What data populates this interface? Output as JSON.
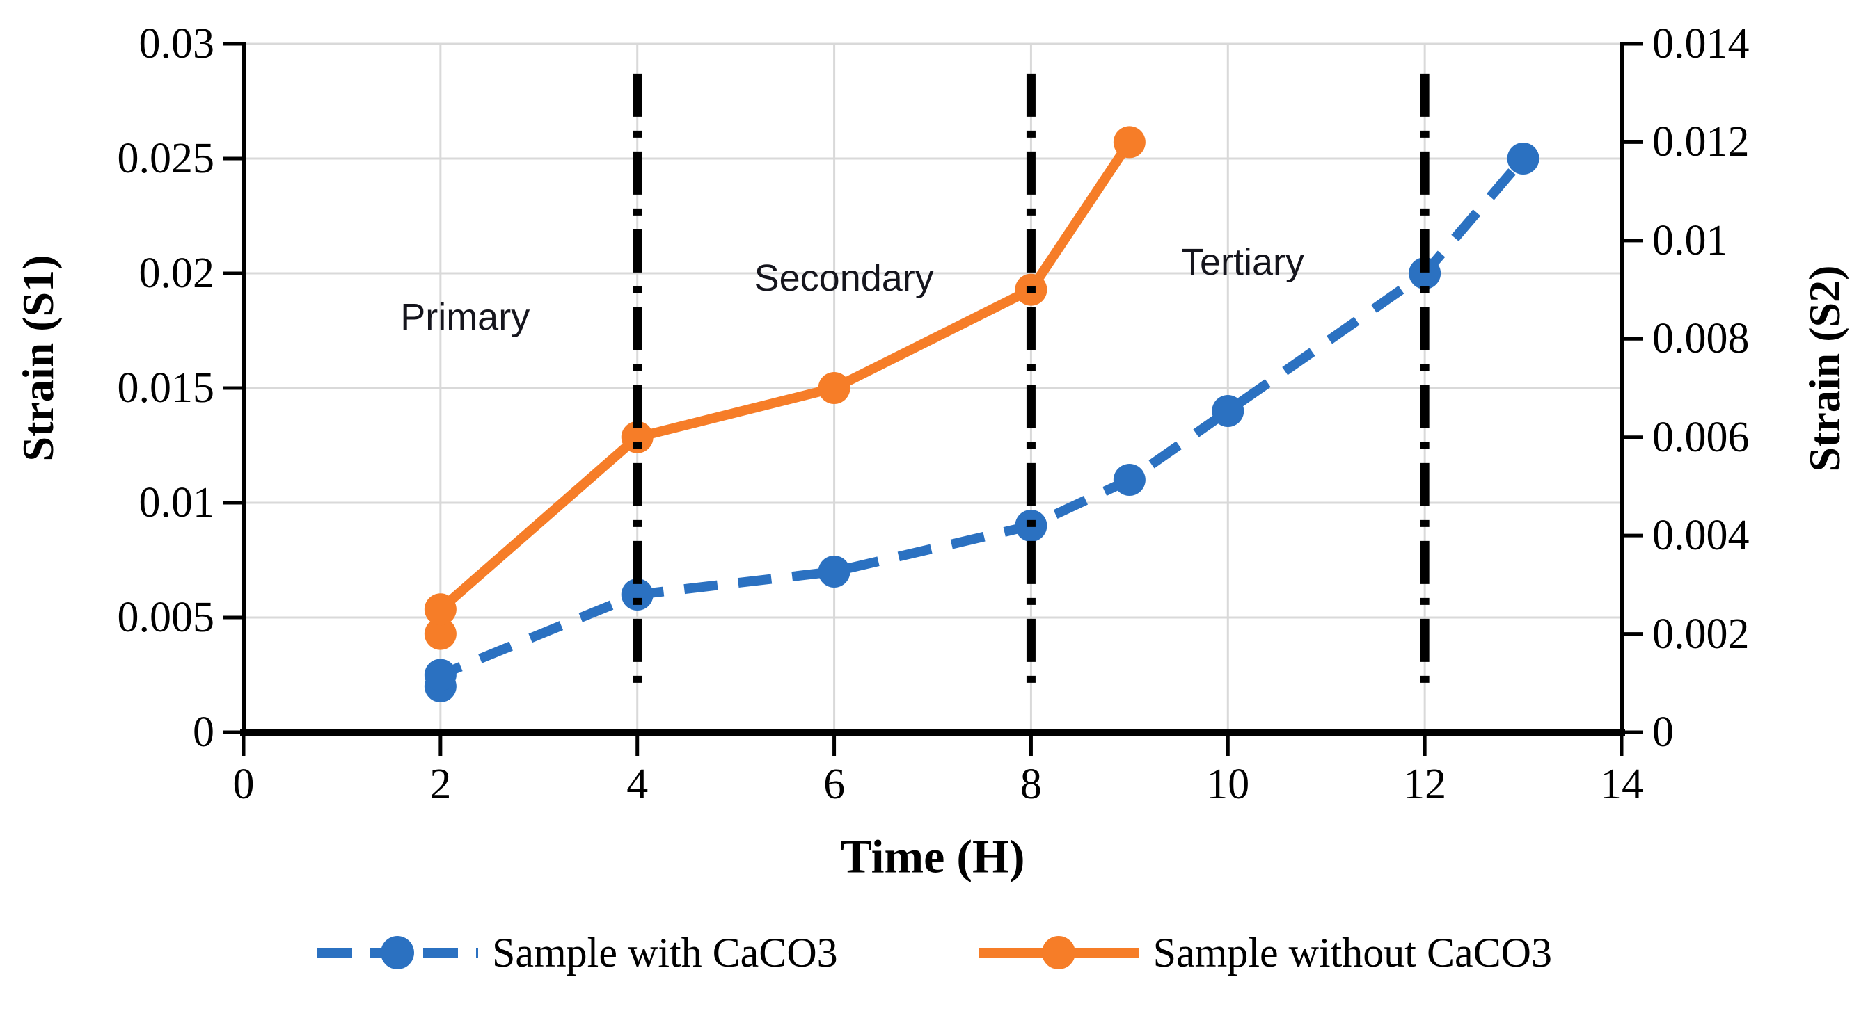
{
  "figure": {
    "background": "#ffffff",
    "x_axis": {
      "title": "Time (H)",
      "min": 0,
      "max": 14,
      "ticks": [
        {
          "label": "0",
          "value": 0
        },
        {
          "label": "2",
          "value": 2
        },
        {
          "label": "4",
          "value": 4
        },
        {
          "label": "6",
          "value": 6
        },
        {
          "label": "8",
          "value": 8
        },
        {
          "label": "10",
          "value": 10
        },
        {
          "label": "12",
          "value": 12
        },
        {
          "label": "14",
          "value": 14
        }
      ]
    },
    "y_left": {
      "title": "Strain (S1)",
      "min": 0,
      "max": 0.03,
      "ticks": [
        {
          "label": "0.03",
          "value": 0.03
        },
        {
          "label": "0.025",
          "value": 0.025
        },
        {
          "label": "0.02",
          "value": 0.02
        },
        {
          "label": "0.015",
          "value": 0.015
        },
        {
          "label": "0.01",
          "value": 0.01
        },
        {
          "label": "0.005",
          "value": 0.005
        },
        {
          "label": "0",
          "value": 0
        }
      ]
    },
    "y_right": {
      "title": "Strain  (S2)",
      "min": 0,
      "max": 0.014,
      "ticks": [
        {
          "label": "0.014",
          "value": 0.014
        },
        {
          "label": "0.012",
          "value": 0.012
        },
        {
          "label": "0.01",
          "value": 0.01
        },
        {
          "label": "0.008",
          "value": 0.008
        },
        {
          "label": "0.006",
          "value": 0.006
        },
        {
          "label": "0.004",
          "value": 0.004
        },
        {
          "label": "0.002",
          "value": 0.002
        },
        {
          "label": "0",
          "value": 0
        }
      ]
    },
    "colors": {
      "series_with_caco3": "#2B71C1",
      "series_without_caco3": "#F67D28",
      "gridline": "#D9D9D9",
      "axis": "#000000",
      "phase_line": "#000000",
      "annotation_text": "#15151d"
    }
  },
  "chart_data": {
    "type": "line",
    "title": "",
    "xlabel": "Time (H)",
    "ylabel_left": "Strain (S1)",
    "ylabel_right": "Strain  (S2)",
    "xlim": [
      0,
      14
    ],
    "ylim_left": [
      0,
      0.03
    ],
    "ylim_right": [
      0,
      0.014
    ],
    "grid": true,
    "legend_position": "bottom",
    "series": [
      {
        "name": "Sample with CaCO3",
        "axis": "left",
        "color": "#2B71C1",
        "line_style": "dashed",
        "marker": "circle",
        "points": [
          [
            2,
            0.002
          ],
          [
            2,
            0.0025
          ],
          [
            4,
            0.006
          ],
          [
            6,
            0.007
          ],
          [
            8,
            0.009
          ],
          [
            9,
            0.011
          ],
          [
            10,
            0.014
          ],
          [
            12,
            0.02
          ],
          [
            13,
            0.025
          ]
        ]
      },
      {
        "name": "Sample without CaCO3",
        "axis": "right",
        "color": "#F67D28",
        "line_style": "solid",
        "marker": "circle",
        "points": [
          [
            2,
            0.002
          ],
          [
            2,
            0.0025
          ],
          [
            4,
            0.006
          ],
          [
            6,
            0.007
          ],
          [
            8,
            0.009
          ],
          [
            9,
            0.012
          ]
        ]
      }
    ],
    "phase_lines": {
      "x": [
        4,
        8,
        12
      ],
      "style": "dash-dot",
      "color": "#000000",
      "s1_range": [
        0.0018,
        0.0287
      ]
    },
    "annotations": [
      {
        "text": "Primary",
        "t": 2.25,
        "s1": 0.0181
      },
      {
        "text": "Secondary",
        "t": 6.1,
        "s1": 0.0198
      },
      {
        "text": "Tertiary",
        "t": 10.15,
        "s1": 0.0205
      }
    ]
  }
}
